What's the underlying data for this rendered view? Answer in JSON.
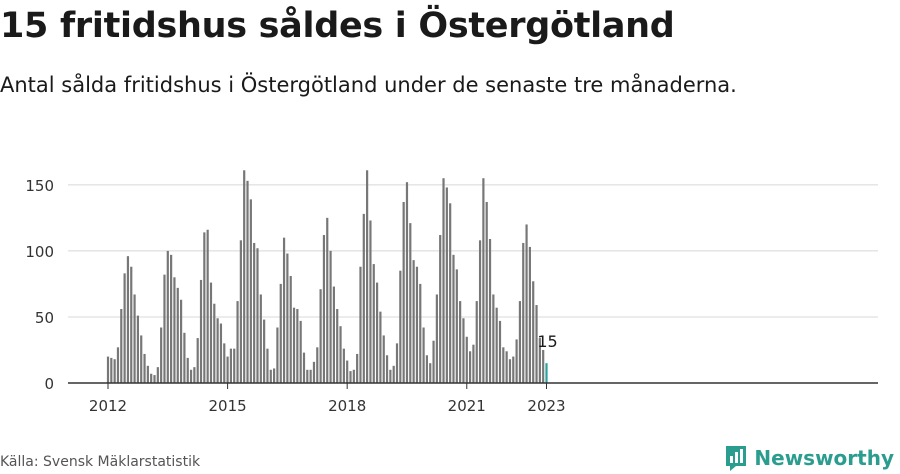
{
  "title": "15 fritidshus såldes i Östergötland",
  "subtitle": "Antal sålda fritidshus i Östergötland under de senaste tre månaderna.",
  "source": "Källa: Svensk Mäklarstatistik",
  "brand": {
    "name": "Newsworthy",
    "icon": "newsworthy-logo-icon",
    "color": "#2a9d8f"
  },
  "colors": {
    "bar": "#777777",
    "highlight": "#2aa3a0",
    "grid": "#d8d8d8",
    "axis": "#333333"
  },
  "chart_data": {
    "type": "bar",
    "ylim": [
      0,
      165
    ],
    "yticks": [
      0,
      50,
      100,
      150
    ],
    "xticks": [
      "2012",
      "2015",
      "2018",
      "2021",
      "2023"
    ],
    "first_period": "2012-01",
    "highlight_label": "15",
    "values": [
      20,
      19,
      18,
      27,
      56,
      83,
      96,
      88,
      67,
      51,
      36,
      22,
      13,
      7,
      6,
      12,
      42,
      82,
      100,
      97,
      80,
      72,
      63,
      38,
      19,
      10,
      12,
      34,
      78,
      114,
      116,
      76,
      60,
      49,
      45,
      30,
      20,
      26,
      26,
      62,
      108,
      161,
      153,
      139,
      106,
      102,
      67,
      48,
      26,
      10,
      11,
      42,
      75,
      110,
      98,
      81,
      57,
      56,
      47,
      23,
      10,
      10,
      16,
      27,
      71,
      112,
      125,
      100,
      73,
      56,
      43,
      26,
      17,
      9,
      10,
      22,
      88,
      128,
      161,
      123,
      90,
      76,
      54,
      36,
      21,
      10,
      13,
      30,
      85,
      137,
      152,
      121,
      93,
      88,
      75,
      42,
      21,
      15,
      32,
      67,
      112,
      155,
      148,
      136,
      97,
      86,
      62,
      49,
      35,
      24,
      29,
      62,
      108,
      155,
      137,
      109,
      67,
      57,
      47,
      27,
      24,
      18,
      20,
      33,
      62,
      106,
      120,
      103,
      77,
      59,
      34,
      25,
      15
    ],
    "highlight_index": 132
  }
}
